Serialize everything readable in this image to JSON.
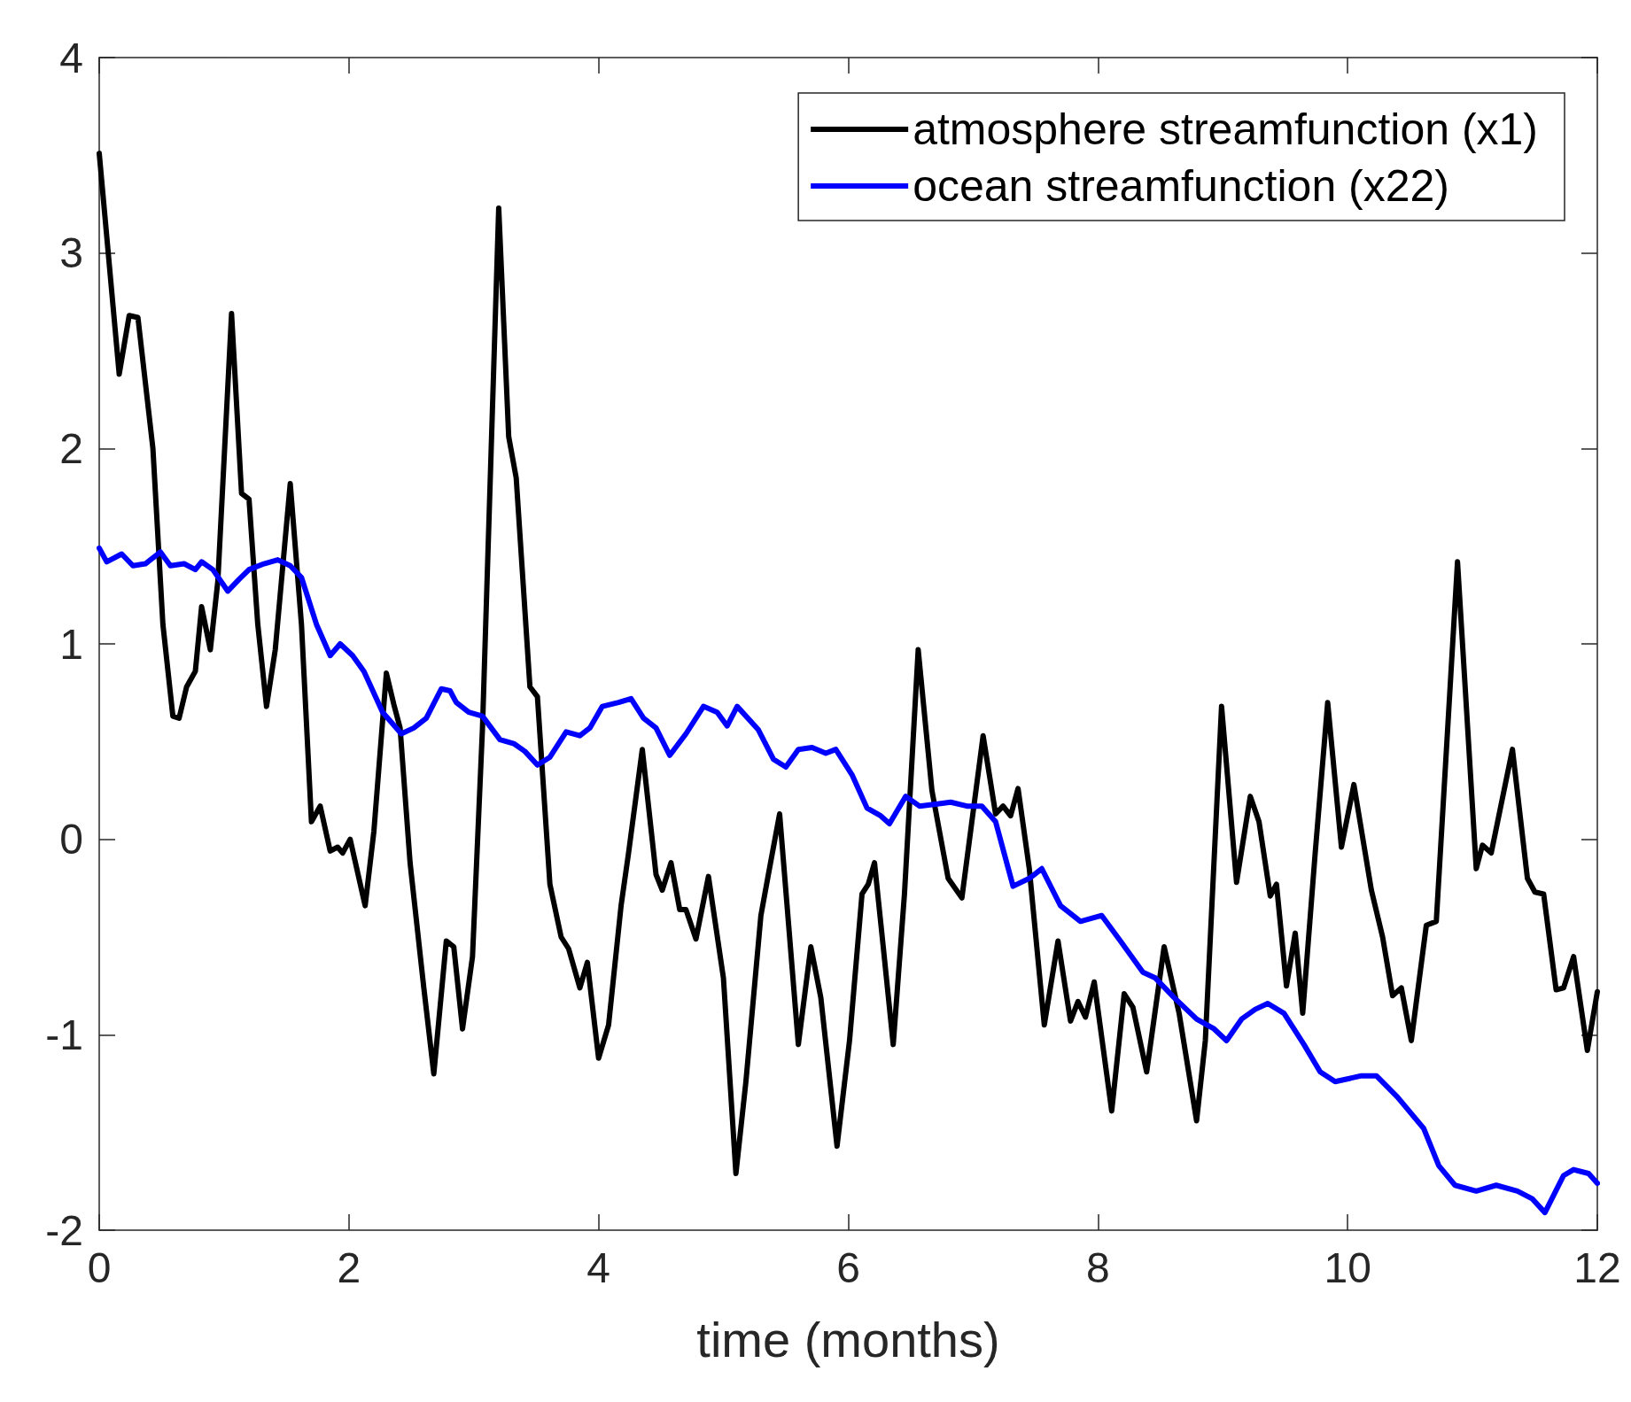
{
  "chart_data": {
    "type": "line",
    "xlabel": "time (months)",
    "xlim": [
      0,
      12
    ],
    "ylim": [
      -2,
      4
    ],
    "xticks": [
      0,
      2,
      4,
      6,
      8,
      10,
      12
    ],
    "yticks": [
      -2,
      -1,
      0,
      1,
      2,
      3,
      4
    ],
    "grid": false,
    "legend": "top right",
    "marker": "none",
    "line_style": "solid",
    "series": [
      {
        "name": "atmosphere streamfunction (x1)",
        "color": "#000000",
        "x": [
          0,
          0.16,
          0.24,
          0.31,
          0.43,
          0.51,
          0.59,
          0.64,
          0.7,
          0.77,
          0.82,
          0.89,
          0.95,
          1.06,
          1.14,
          1.2,
          1.27,
          1.34,
          1.41,
          1.53,
          1.62,
          1.7,
          1.77,
          1.85,
          1.91,
          1.95,
          2.01,
          2.13,
          2.2,
          2.3,
          2.36,
          2.41,
          2.49,
          2.6,
          2.68,
          2.78,
          2.84,
          2.91,
          2.99,
          3.07,
          3.2,
          3.28,
          3.34,
          3.45,
          3.51,
          3.61,
          3.7,
          3.76,
          3.85,
          3.91,
          4.0,
          4.08,
          4.18,
          4.24,
          4.35,
          4.46,
          4.51,
          4.58,
          4.65,
          4.7,
          4.78,
          4.88,
          5.0,
          5.1,
          5.18,
          5.3,
          5.36,
          5.45,
          5.6,
          5.7,
          5.78,
          5.91,
          6.01,
          6.11,
          6.16,
          6.21,
          6.28,
          6.36,
          6.45,
          6.56,
          6.67,
          6.8,
          6.91,
          7.08,
          7.18,
          7.24,
          7.3,
          7.36,
          7.45,
          7.57,
          7.68,
          7.78,
          7.84,
          7.9,
          7.97,
          8.11,
          8.21,
          8.28,
          8.39,
          8.53,
          8.65,
          8.79,
          8.86,
          8.99,
          9.11,
          9.22,
          9.29,
          9.38,
          9.43,
          9.51,
          9.58,
          9.64,
          9.74,
          9.84,
          9.95,
          10.05,
          10.19,
          10.28,
          10.36,
          10.43,
          10.51,
          10.63,
          10.71,
          10.88,
          11.03,
          11.08,
          11.15,
          11.32,
          11.44,
          11.5,
          11.57,
          11.67,
          11.73,
          11.81,
          11.92,
          12.0
        ],
        "values": [
          3.51,
          2.38,
          2.68,
          2.67,
          2.0,
          1.1,
          0.63,
          0.62,
          0.78,
          0.86,
          1.19,
          0.97,
          1.32,
          2.69,
          1.77,
          1.74,
          1.1,
          0.68,
          0.97,
          1.82,
          1.1,
          0.09,
          0.17,
          -0.06,
          -0.04,
          -0.07,
          0.0,
          -0.34,
          0.04,
          0.85,
          0.69,
          0.57,
          -0.12,
          -0.76,
          -1.2,
          -0.52,
          -0.55,
          -0.97,
          -0.6,
          0.57,
          3.23,
          2.06,
          1.85,
          0.78,
          0.73,
          -0.23,
          -0.5,
          -0.56,
          -0.76,
          -0.63,
          -1.12,
          -0.95,
          -0.34,
          -0.07,
          0.46,
          -0.18,
          -0.26,
          -0.12,
          -0.36,
          -0.36,
          -0.51,
          -0.19,
          -0.71,
          -1.71,
          -1.24,
          -0.39,
          -0.18,
          0.13,
          -1.05,
          -0.55,
          -0.81,
          -1.57,
          -1.03,
          -0.28,
          -0.23,
          -0.12,
          -0.55,
          -1.05,
          -0.28,
          0.97,
          0.25,
          -0.2,
          -0.3,
          0.53,
          0.13,
          0.17,
          0.12,
          0.26,
          -0.15,
          -0.95,
          -0.52,
          -0.93,
          -0.83,
          -0.91,
          -0.73,
          -1.39,
          -0.79,
          -0.86,
          -1.19,
          -0.55,
          -0.89,
          -1.44,
          -1.03,
          0.68,
          -0.22,
          0.22,
          0.09,
          -0.29,
          -0.23,
          -0.75,
          -0.48,
          -0.89,
          -0.07,
          0.7,
          -0.04,
          0.28,
          -0.26,
          -0.5,
          -0.8,
          -0.76,
          -1.03,
          -0.44,
          -0.42,
          1.42,
          -0.15,
          -0.03,
          -0.07,
          0.46,
          -0.2,
          -0.27,
          -0.28,
          -0.77,
          -0.76,
          -0.6,
          -1.08,
          -0.78
        ]
      },
      {
        "name": "ocean streamfunction (x22)",
        "color": "#0000ff",
        "x": [
          0,
          0.06,
          0.18,
          0.27,
          0.37,
          0.41,
          0.49,
          0.57,
          0.68,
          0.77,
          0.82,
          0.91,
          1.03,
          1.12,
          1.2,
          1.32,
          1.43,
          1.53,
          1.62,
          1.74,
          1.85,
          1.93,
          2.03,
          2.12,
          2.27,
          2.42,
          2.52,
          2.62,
          2.74,
          2.81,
          2.86,
          2.96,
          3.07,
          3.21,
          3.32,
          3.41,
          3.51,
          3.61,
          3.74,
          3.85,
          3.93,
          4.03,
          4.16,
          4.26,
          4.36,
          4.46,
          4.57,
          4.7,
          4.84,
          4.95,
          5.03,
          5.11,
          5.28,
          5.4,
          5.5,
          5.6,
          5.71,
          5.82,
          5.9,
          6.03,
          6.15,
          6.26,
          6.33,
          6.46,
          6.57,
          6.7,
          6.82,
          6.95,
          7.07,
          7.18,
          7.32,
          7.45,
          7.55,
          7.7,
          7.86,
          8.03,
          8.18,
          8.36,
          8.46,
          8.61,
          8.79,
          8.93,
          9.03,
          9.15,
          9.26,
          9.36,
          9.49,
          9.65,
          9.78,
          9.9,
          10.11,
          10.23,
          10.4,
          10.61,
          10.73,
          10.86,
          11.03,
          11.19,
          11.36,
          11.48,
          11.58,
          11.73,
          11.81,
          11.93,
          12.0
        ],
        "values": [
          1.49,
          1.42,
          1.46,
          1.4,
          1.41,
          1.43,
          1.47,
          1.4,
          1.41,
          1.38,
          1.42,
          1.38,
          1.27,
          1.33,
          1.38,
          1.41,
          1.43,
          1.4,
          1.34,
          1.1,
          0.94,
          1.0,
          0.94,
          0.86,
          0.65,
          0.54,
          0.57,
          0.62,
          0.77,
          0.76,
          0.7,
          0.65,
          0.63,
          0.51,
          0.49,
          0.45,
          0.38,
          0.42,
          0.55,
          0.53,
          0.57,
          0.68,
          0.7,
          0.72,
          0.62,
          0.57,
          0.43,
          0.54,
          0.68,
          0.65,
          0.58,
          0.68,
          0.56,
          0.41,
          0.37,
          0.46,
          0.47,
          0.44,
          0.46,
          0.33,
          0.16,
          0.12,
          0.08,
          0.22,
          0.17,
          0.18,
          0.19,
          0.17,
          0.17,
          0.09,
          -0.24,
          -0.2,
          -0.15,
          -0.34,
          -0.42,
          -0.39,
          -0.52,
          -0.68,
          -0.71,
          -0.81,
          -0.92,
          -0.97,
          -1.03,
          -0.92,
          -0.87,
          -0.84,
          -0.89,
          -1.05,
          -1.19,
          -1.24,
          -1.21,
          -1.21,
          -1.32,
          -1.48,
          -1.67,
          -1.77,
          -1.8,
          -1.77,
          -1.8,
          -1.84,
          -1.91,
          -1.72,
          -1.69,
          -1.71,
          -1.76
        ]
      }
    ]
  }
}
